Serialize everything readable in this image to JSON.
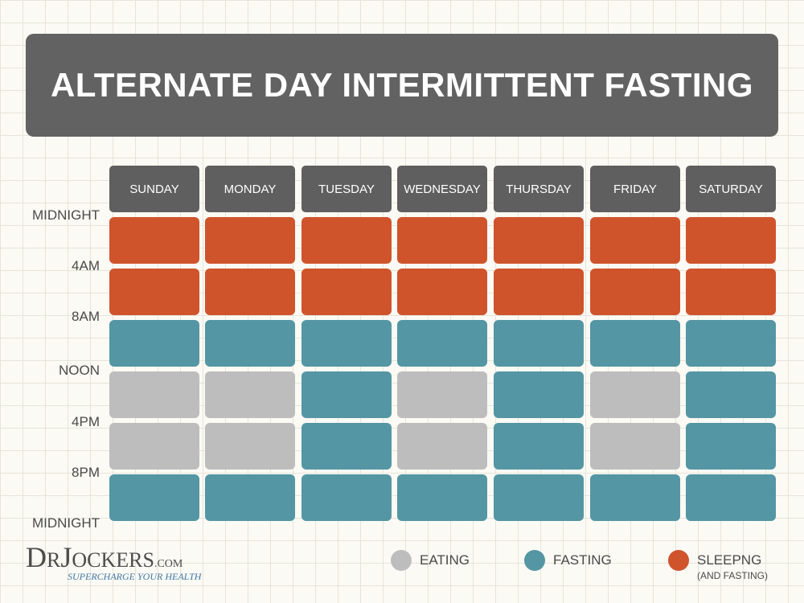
{
  "title": "ALTERNATE DAY INTERMITTENT FASTING",
  "days": [
    "SUNDAY",
    "MONDAY",
    "TUESDAY",
    "WEDNESDAY",
    "THURSDAY",
    "FRIDAY",
    "SATURDAY"
  ],
  "time_labels": [
    "MIDNIGHT",
    "4AM",
    "8AM",
    "NOON",
    "4PM",
    "8PM",
    "MIDNIGHT"
  ],
  "schedule": [
    [
      "sleeping",
      "sleeping",
      "sleeping",
      "sleeping",
      "sleeping",
      "sleeping",
      "sleeping"
    ],
    [
      "sleeping",
      "sleeping",
      "sleeping",
      "sleeping",
      "sleeping",
      "sleeping",
      "sleeping"
    ],
    [
      "fasting",
      "fasting",
      "fasting",
      "fasting",
      "fasting",
      "fasting",
      "fasting"
    ],
    [
      "eating",
      "eating",
      "fasting",
      "eating",
      "fasting",
      "eating",
      "fasting"
    ],
    [
      "eating",
      "eating",
      "fasting",
      "eating",
      "fasting",
      "eating",
      "fasting"
    ],
    [
      "fasting",
      "fasting",
      "fasting",
      "fasting",
      "fasting",
      "fasting",
      "fasting"
    ]
  ],
  "colors": {
    "eating": "#bdbdbd",
    "fasting": "#5496a3",
    "sleeping": "#cf542c",
    "header": "#5f5f5f",
    "title_bg": "#626262"
  },
  "legend": [
    {
      "key": "eating",
      "label": "EATING",
      "sub": ""
    },
    {
      "key": "fasting",
      "label": "FASTING",
      "sub": ""
    },
    {
      "key": "sleeping",
      "label": "SLEEPNG",
      "sub": "(AND FASTING)"
    }
  ],
  "logo": {
    "dr_d": "D",
    "dr_r": "R",
    "jockers_j": "J",
    "jockers_rest": "OCKERS",
    "dotcom": ".COM",
    "tagline": "SUPERCHARGE YOUR HEALTH"
  }
}
